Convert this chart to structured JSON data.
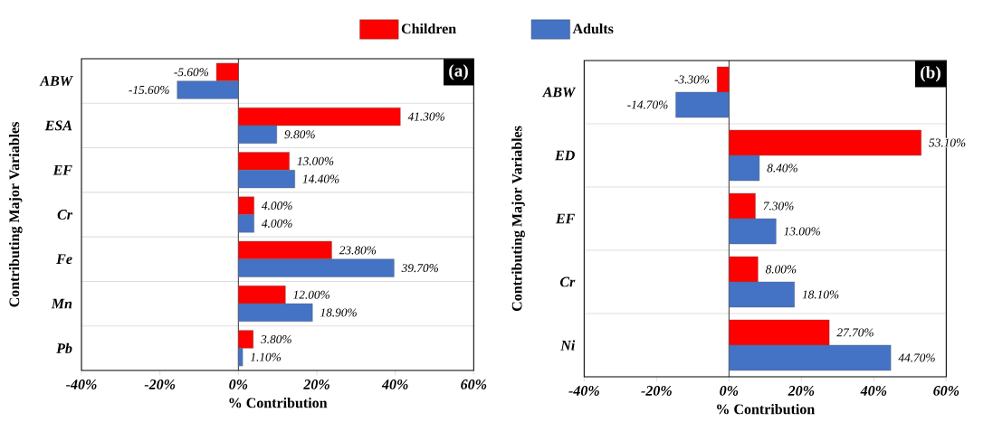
{
  "chart_data": [
    {
      "type": "bar",
      "orientation": "horizontal",
      "categories": [
        "ABW",
        "ESA",
        "EF",
        "Cr",
        "Fe",
        "Mn",
        "Pb"
      ],
      "series": [
        {
          "name": "Children",
          "color": "#ff0000",
          "values": [
            -5.6,
            41.3,
            13.0,
            4.0,
            23.8,
            12.0,
            3.8
          ],
          "value_labels": [
            "-5.60%",
            "41.30%",
            "13.00%",
            "4.00%",
            "23.80%",
            "12.00%",
            "3.80%"
          ]
        },
        {
          "name": "Adults",
          "color": "#4472c4",
          "values": [
            -15.6,
            9.8,
            14.4,
            4.0,
            39.7,
            18.9,
            1.1
          ],
          "value_labels": [
            "-15.60%",
            "9.80%",
            "14.40%",
            "4.00%",
            "39.70%",
            "18.90%",
            "1.10%"
          ]
        }
      ],
      "xlim": [
        -40,
        60
      ],
      "xticks": [
        {
          "value": -40,
          "label": "-40%"
        },
        {
          "value": -20,
          "label": "-20%"
        },
        {
          "value": 0,
          "label": "0%"
        },
        {
          "value": 20,
          "label": "20%"
        },
        {
          "value": 40,
          "label": "40%"
        },
        {
          "value": 60,
          "label": "60%"
        }
      ],
      "xlabel": "% Contribution",
      "ylabel": "Contributing Major Variables",
      "annotations": [
        "(a)"
      ],
      "grid": "y",
      "legend": "top"
    },
    {
      "type": "bar",
      "orientation": "horizontal",
      "categories": [
        "ABW",
        "ED",
        "EF",
        "Cr",
        "Ni"
      ],
      "series": [
        {
          "color": "#ff0000",
          "values": [
            -3.3,
            53.1,
            7.3,
            8.0,
            27.7
          ],
          "value_labels": [
            "-3.30%",
            "53.10%",
            "7.30%",
            "8.00%",
            "27.70%"
          ]
        },
        {
          "color": "#4472c4",
          "values": [
            -14.7,
            8.4,
            13.0,
            18.1,
            44.7
          ],
          "value_labels": [
            "-14.70%",
            "8.40%",
            "13.00%",
            "18.10%",
            "44.70%"
          ]
        }
      ],
      "xlim": [
        -40,
        60
      ],
      "xticks": [
        {
          "value": -40,
          "label": "-40%"
        },
        {
          "value": -20,
          "label": "-20%"
        },
        {
          "value": 0,
          "label": "0%"
        },
        {
          "value": 20,
          "label": "20%"
        },
        {
          "value": 40,
          "label": "40%"
        },
        {
          "value": 60,
          "label": "60%"
        }
      ],
      "xlabel": "% Contribution",
      "ylabel": "Contributing Major Variables",
      "annotations": [
        "(b)"
      ],
      "grid": "y"
    }
  ]
}
